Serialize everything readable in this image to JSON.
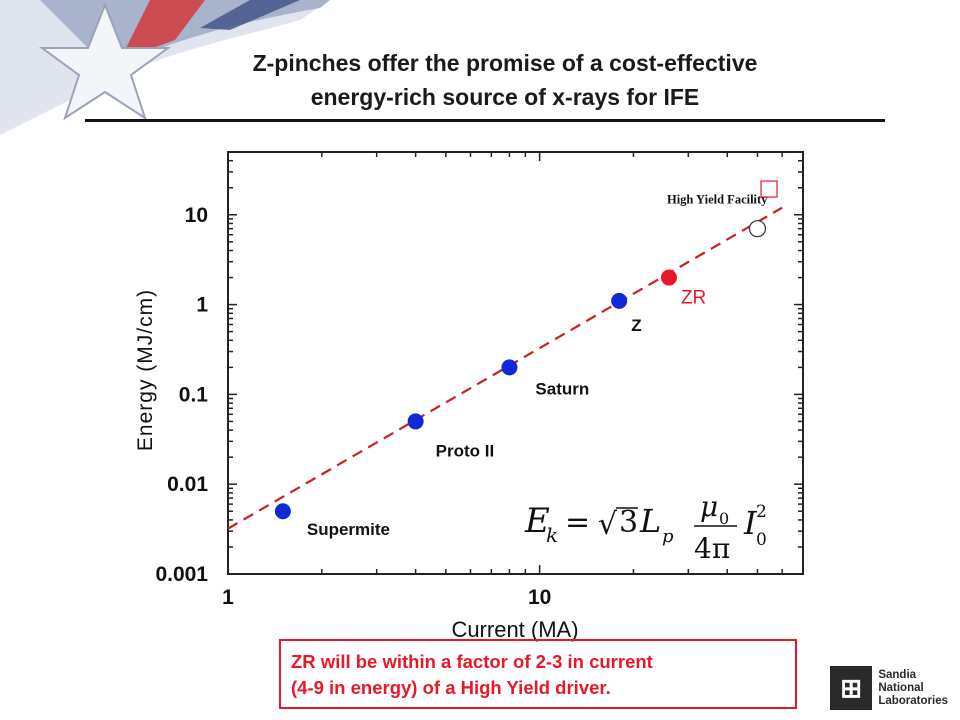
{
  "slide": {
    "title_line_1": "Z-pinches offer the promise of a cost-effective",
    "title_line_2": "energy-rich source of x-rays for IFE",
    "note_line_1": "ZR will be within a factor of 2-3 in current",
    "note_line_2": "(4-9 in energy) of a High Yield driver.",
    "accent_color": "#e8182a",
    "logo": {
      "icon": "sandia-thunderbird-logo-icon",
      "line_1": "Sandia",
      "line_2": "National",
      "line_3": "Laboratories"
    }
  },
  "chart_data": {
    "type": "scatter",
    "xlabel": "Current (MA)",
    "ylabel": "Energy (MJ/cm)",
    "xscale": "log",
    "yscale": "log",
    "xlim": [
      1,
      70
    ],
    "ylim": [
      0.001,
      50
    ],
    "x_tick_labels": [
      {
        "value": 1,
        "label": "1"
      },
      {
        "value": 10,
        "label": "10"
      }
    ],
    "y_tick_labels": [
      {
        "value": 0.001,
        "label": "0.001"
      },
      {
        "value": 0.01,
        "label": "0.01"
      },
      {
        "value": 0.1,
        "label": "0.1"
      },
      {
        "value": 1,
        "label": "1"
      },
      {
        "value": 10,
        "label": "10"
      }
    ],
    "grid": false,
    "points": [
      {
        "name": "Supermite",
        "x": 1.5,
        "y": 0.005,
        "color": "#1028d8",
        "style": "filled"
      },
      {
        "name": "Proto II",
        "x": 4,
        "y": 0.05,
        "color": "#1028d8",
        "style": "filled"
      },
      {
        "name": "Saturn",
        "x": 8,
        "y": 0.2,
        "color": "#1028d8",
        "style": "filled"
      },
      {
        "name": "Z",
        "x": 18,
        "y": 1.1,
        "color": "#1028d8",
        "style": "filled"
      },
      {
        "name": "ZR",
        "x": 26,
        "y": 2,
        "color": "#e8182a",
        "style": "filled"
      },
      {
        "name": "High Yield Facility",
        "x": 50,
        "y": 7,
        "color": "#333333",
        "style": "open"
      }
    ],
    "fit_line": {
      "x_from": 1,
      "x_to": 60,
      "y_from": 0.0032,
      "y_to": 12,
      "color": "#cc1f1f",
      "style": "dashed"
    },
    "formula": "E_k = √3 L_p (μ₀ / 4π) I₀²"
  }
}
